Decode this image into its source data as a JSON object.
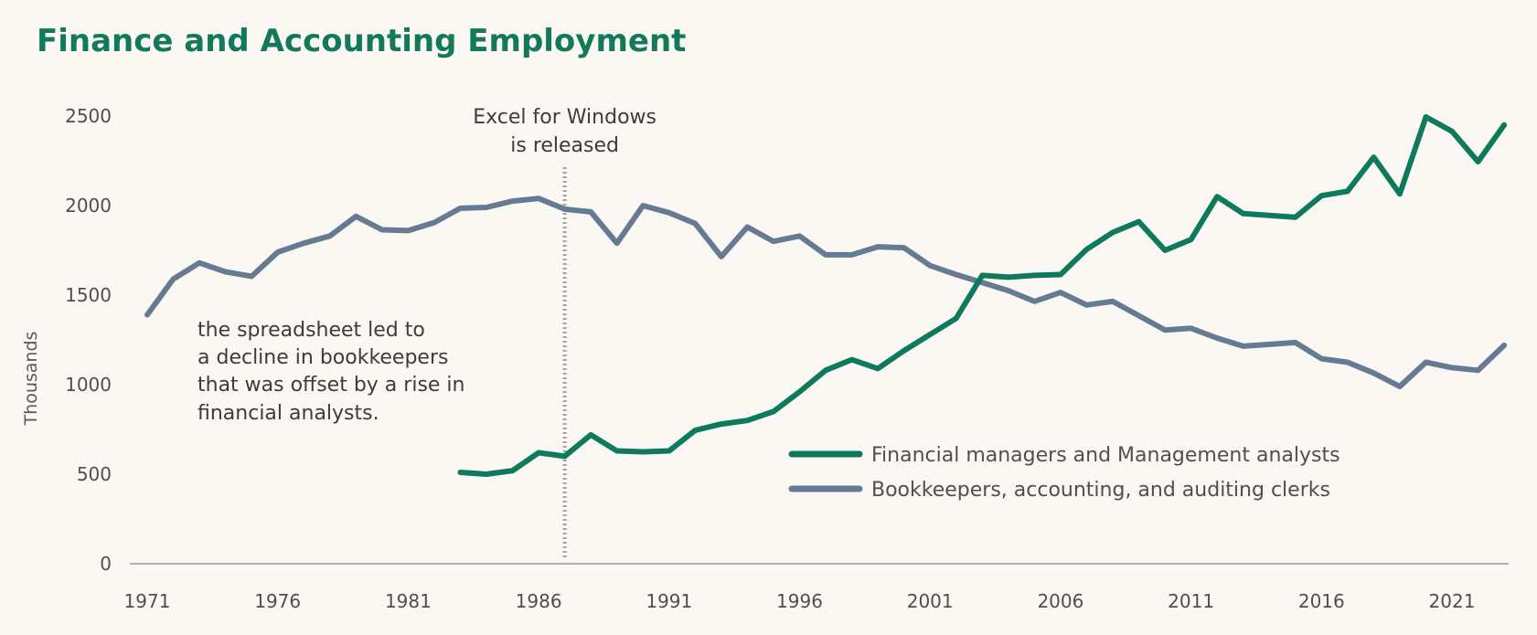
{
  "colors": {
    "background": "#fbf7f3",
    "title": "#13795b",
    "series_green": "#0d7a5c",
    "series_slate": "#667a93",
    "axis": "#9a9a9a",
    "marker": "#a3a3a3"
  },
  "chart_data": {
    "type": "line",
    "title": "Finance and Accounting Employment",
    "ylabel": "Thousands",
    "xlabel": "",
    "xlim": [
      1971,
      2021
    ],
    "ylim": [
      0,
      2500
    ],
    "x_ticks": [
      "1971",
      "1976",
      "1981",
      "1986",
      "1991",
      "1996",
      "2001",
      "2006",
      "2011",
      "2016",
      "2021"
    ],
    "y_ticks": [
      "0",
      "500",
      "1000",
      "1500",
      "2000",
      "2500"
    ],
    "grid": false,
    "legend_position": "center-right",
    "series": [
      {
        "name": "Financial managers and Management analysts",
        "color": "#0d7a5c",
        "x": [
          1983,
          1984,
          1985,
          1986,
          1987,
          1988,
          1989,
          1990,
          1991,
          1992,
          1993,
          1994,
          1995,
          1996,
          1997,
          1998,
          1999,
          2000,
          2001,
          2002,
          2003,
          2004,
          2005,
          2006,
          2007,
          2008,
          2009,
          2010,
          2011,
          2012,
          2013,
          2014,
          2015,
          2016,
          2017,
          2018,
          2019,
          2020,
          2021,
          2022,
          2023
        ],
        "y": [
          510,
          500,
          520,
          620,
          600,
          720,
          630,
          625,
          630,
          745,
          780,
          800,
          850,
          960,
          1080,
          1140,
          1090,
          1190,
          1280,
          1370,
          1610,
          1600,
          1610,
          1615,
          1755,
          1850,
          1910,
          1750,
          1810,
          2050,
          1955,
          1945,
          1935,
          2055,
          2080,
          2270,
          2065,
          2495,
          2415,
          2245,
          2450
        ]
      },
      {
        "name": "Bookkeepers, accounting, and auditing clerks",
        "color": "#667a93",
        "x": [
          1971,
          1972,
          1973,
          1974,
          1975,
          1976,
          1977,
          1978,
          1979,
          1980,
          1981,
          1982,
          1983,
          1984,
          1985,
          1986,
          1987,
          1988,
          1989,
          1990,
          1991,
          1992,
          1993,
          1994,
          1995,
          1996,
          1997,
          1998,
          1999,
          2000,
          2001,
          2002,
          2003,
          2004,
          2005,
          2006,
          2007,
          2008,
          2009,
          2010,
          2011,
          2012,
          2013,
          2014,
          2015,
          2016,
          2017,
          2018,
          2019,
          2020,
          2021,
          2022,
          2023
        ],
        "y": [
          1390,
          1590,
          1680,
          1630,
          1605,
          1740,
          1790,
          1830,
          1940,
          1865,
          1860,
          1905,
          1985,
          1990,
          2025,
          2040,
          1980,
          1965,
          1790,
          2000,
          1960,
          1900,
          1715,
          1880,
          1800,
          1830,
          1725,
          1725,
          1770,
          1765,
          1665,
          1615,
          1570,
          1525,
          1465,
          1515,
          1445,
          1465,
          1385,
          1305,
          1315,
          1260,
          1215,
          1225,
          1235,
          1145,
          1125,
          1065,
          990,
          1125,
          1095,
          1080,
          1220
        ]
      }
    ],
    "annotations": {
      "event_year": 1987,
      "event_label_line1": "Excel for Windows",
      "event_label_line2": "is released",
      "note_lines": [
        "the spreadsheet led to",
        "a decline in bookkeepers",
        "that was offset by a rise in",
        "financial analysts."
      ]
    }
  }
}
